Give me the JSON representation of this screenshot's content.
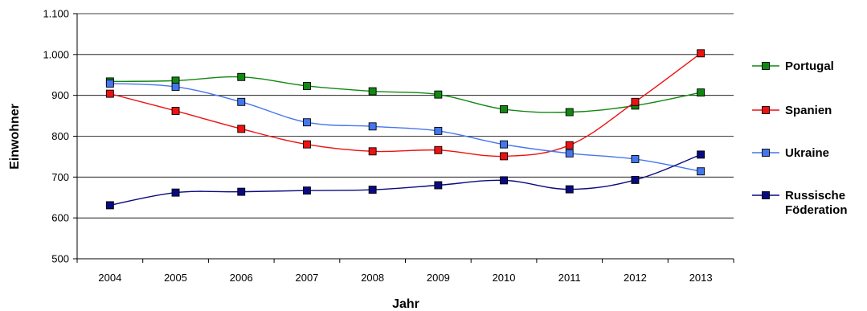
{
  "chart_data": {
    "type": "line",
    "xlabel": "Jahr",
    "ylabel": "Einwohner",
    "categories": [
      "2004",
      "2005",
      "2006",
      "2007",
      "2008",
      "2009",
      "2010",
      "2011",
      "2012",
      "2013"
    ],
    "ylim": [
      500,
      1100
    ],
    "yticks": [
      500,
      600,
      700,
      800,
      900,
      1000,
      1100
    ],
    "ytick_labels": [
      "500",
      "600",
      "700",
      "800",
      "900",
      "1.000",
      "1.100"
    ],
    "grid": true,
    "legend_position": "right",
    "series": [
      {
        "name": "Portugal",
        "color": "#118811",
        "values": [
          934,
          936,
          945,
          923,
          910,
          902,
          866,
          859,
          875,
          907
        ]
      },
      {
        "name": "Spanien",
        "color": "#ee1111",
        "values": [
          904,
          862,
          818,
          780,
          763,
          766,
          751,
          778,
          884,
          1003
        ]
      },
      {
        "name": "Ukraine",
        "color": "#4477ee",
        "values": [
          929,
          921,
          884,
          834,
          824,
          813,
          780,
          758,
          744,
          714
        ]
      },
      {
        "name": "Russische Föderation",
        "color": "#0a0a80",
        "legend_lines": [
          "Russische",
          "Föderation"
        ],
        "values": [
          631,
          662,
          664,
          667,
          669,
          680,
          692,
          670,
          693,
          755
        ]
      }
    ]
  }
}
